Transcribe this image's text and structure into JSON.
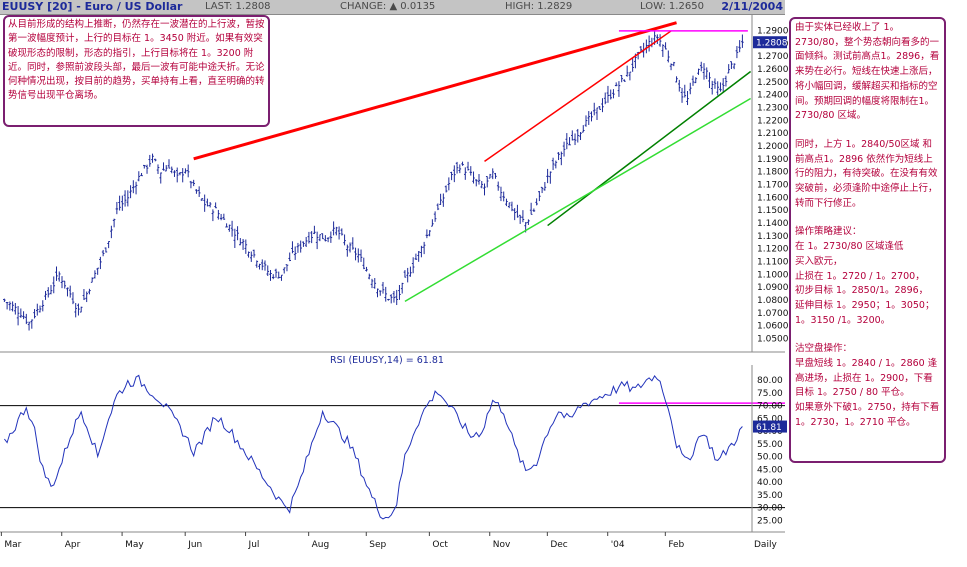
{
  "header": {
    "symbol": "EUUSY [20] - Euro / US Dollar",
    "last": "LAST: 1.2808",
    "change": "CHANGE: ▲ 0.0135",
    "high": "HIGH: 1.2829",
    "low": "LOW: 1.2650",
    "date": "2/11/2004"
  },
  "notes": {
    "left": "从目前形成的结构上推断，仍然存在一波潜在的上行波，暂按第一波幅度预计，上行的目标在 1。3450 附近。如果有效突破现形态的限制，形态的指引，上行目标将在 1。3200 附近。同时，参照前波段头部，最后一波有可能中途夭折。无论何种情况出现，按目前的趋势，买单持有上看，直至明确的转势信号出现平仓离场。",
    "right": [
      "由于实体已经收上了 1。2730/80，整个势态朝向看多的一面倾斜。测试前高点1。2896，看来势在必行。短线在快速上涨后，将小幅回调，缓解超买和指标的空间。预期回调的幅度将限制在1。2730/80 区域。",
      "",
      "同时，上方 1。2840/50区域 和 前高点1。2896 依然作为短线上行的阻力，有待突破。在没有有效突破前，必须逢阶中途停止上行，转而下行修正。",
      "",
      "操作策略建议：",
      "在 1。2730/80 区域逢低",
      "  买入欧元，",
      "止损在 1。2720 / 1。2700，",
      "初步目标 1。2850/1。2896，",
      "延伸目标 1。2950；1。3050；",
      "1。3150 /1。3200。",
      "",
      "沽空盘操作：",
      "早盘短线 1。2840 / 1。2860 逢高进场，止损在 1。2900，下看目标 1。2750 / 80  平仓。",
      "如果意外下破1。2750，持有下看 1。2730，1。2710 平仓。"
    ]
  },
  "chart_data": [
    {
      "type": "bar",
      "title": "EUUSY [20] - Euro / US Dollar",
      "x_labels": [
        "Mar",
        "Apr",
        "May",
        "Jun",
        "Jul",
        "Aug",
        "Sep",
        "Oct",
        "Nov",
        "Dec",
        "'04",
        "Feb",
        "Daily"
      ],
      "y_ticks": [
        "1.2900",
        "1.2800",
        "1.2700",
        "1.2600",
        "1.2500",
        "1.2400",
        "1.2300",
        "1.2200",
        "1.2100",
        "1.2000",
        "1.1900",
        "1.1800",
        "1.1700",
        "1.1600",
        "1.1500",
        "1.1400",
        "1.1300",
        "1.1200",
        "1.1100",
        "1.1000",
        "1.0900",
        "1.0800",
        "1.0700",
        "1.0600",
        "1.0500"
      ],
      "ylim": [
        1.045,
        1.295
      ],
      "last_value_label": "1.2808",
      "close_anchors": [
        [
          0,
          1.08
        ],
        [
          3,
          1.075
        ],
        [
          6,
          1.07
        ],
        [
          9,
          1.062
        ],
        [
          12,
          1.072
        ],
        [
          16,
          1.085
        ],
        [
          20,
          1.1
        ],
        [
          24,
          1.085
        ],
        [
          27,
          1.072
        ],
        [
          30,
          1.085
        ],
        [
          33,
          1.1
        ],
        [
          37,
          1.12
        ],
        [
          41,
          1.15
        ],
        [
          45,
          1.16
        ],
        [
          48,
          1.172
        ],
        [
          51,
          1.182
        ],
        [
          54,
          1.19
        ],
        [
          57,
          1.18
        ],
        [
          60,
          1.185
        ],
        [
          63,
          1.175
        ],
        [
          66,
          1.182
        ],
        [
          69,
          1.168
        ],
        [
          73,
          1.155
        ],
        [
          77,
          1.15
        ],
        [
          81,
          1.14
        ],
        [
          85,
          1.13
        ],
        [
          89,
          1.12
        ],
        [
          93,
          1.11
        ],
        [
          97,
          1.1
        ],
        [
          101,
          1.1
        ],
        [
          105,
          1.115
        ],
        [
          109,
          1.125
        ],
        [
          113,
          1.132
        ],
        [
          117,
          1.128
        ],
        [
          121,
          1.135
        ],
        [
          125,
          1.122
        ],
        [
          129,
          1.115
        ],
        [
          133,
          1.1
        ],
        [
          137,
          1.088
        ],
        [
          140,
          1.082
        ],
        [
          143,
          1.08
        ],
        [
          146,
          1.095
        ],
        [
          149,
          1.108
        ],
        [
          152,
          1.12
        ],
        [
          156,
          1.14
        ],
        [
          160,
          1.16
        ],
        [
          163,
          1.176
        ],
        [
          166,
          1.185
        ],
        [
          169,
          1.18
        ],
        [
          172,
          1.172
        ],
        [
          175,
          1.168
        ],
        [
          178,
          1.178
        ],
        [
          181,
          1.165
        ],
        [
          184,
          1.155
        ],
        [
          187,
          1.145
        ],
        [
          190,
          1.14
        ],
        [
          193,
          1.15
        ],
        [
          196,
          1.165
        ],
        [
          199,
          1.18
        ],
        [
          203,
          1.195
        ],
        [
          207,
          1.205
        ],
        [
          211,
          1.215
        ],
        [
          215,
          1.225
        ],
        [
          219,
          1.235
        ],
        [
          223,
          1.245
        ],
        [
          227,
          1.255
        ],
        [
          231,
          1.27
        ],
        [
          235,
          1.28
        ],
        [
          238,
          1.285
        ],
        [
          241,
          1.275
        ],
        [
          244,
          1.262
        ],
        [
          247,
          1.24
        ],
        [
          249,
          1.236
        ],
        [
          252,
          1.255
        ],
        [
          255,
          1.262
        ],
        [
          258,
          1.248
        ],
        [
          261,
          1.242
        ],
        [
          264,
          1.258
        ],
        [
          267,
          1.27
        ],
        [
          269,
          1.2808
        ]
      ],
      "trendlines": [
        {
          "name": "",
          "color": "#ff0000",
          "from": [
            69,
            1.19
          ],
          "to": [
            245,
            1.296
          ]
        },
        {
          "name": "",
          "color": "#ff0000",
          "from": [
            175,
            1.188
          ],
          "to": [
            243,
            1.2896
          ]
        },
        {
          "name": "",
          "color": "#008000",
          "from": [
            198,
            1.138
          ],
          "to": [
            272,
            1.258
          ]
        },
        {
          "name": "",
          "color": "#33dd33",
          "from": [
            146,
            1.079
          ],
          "to": [
            272,
            1.237
          ]
        },
        {
          "name": "",
          "color": "#ff00ff",
          "from": [
            224,
            1.2896
          ],
          "to": [
            271,
            1.2896
          ]
        }
      ]
    },
    {
      "type": "line",
      "title": "RSI (EUUSY,14) = 61.81",
      "ylabel_ticks": [
        "80.00",
        "75.00",
        "70.00",
        "65.00",
        "60.00",
        "55.00",
        "50.00",
        "45.00",
        "40.00",
        "35.00",
        "30.00",
        "25.00"
      ],
      "ylim": [
        22,
        84
      ],
      "reference_lines": [
        70,
        30
      ],
      "last_value_label": "61.81",
      "values": [
        [
          0,
          55
        ],
        [
          4,
          62
        ],
        [
          8,
          70
        ],
        [
          11,
          60
        ],
        [
          14,
          45
        ],
        [
          17,
          38
        ],
        [
          20,
          45
        ],
        [
          24,
          58
        ],
        [
          28,
          68
        ],
        [
          31,
          60
        ],
        [
          34,
          50
        ],
        [
          37,
          62
        ],
        [
          41,
          74
        ],
        [
          45,
          79
        ],
        [
          49,
          80
        ],
        [
          53,
          76
        ],
        [
          57,
          72
        ],
        [
          61,
          66
        ],
        [
          65,
          60
        ],
        [
          69,
          52
        ],
        [
          73,
          58
        ],
        [
          77,
          66
        ],
        [
          81,
          62
        ],
        [
          85,
          56
        ],
        [
          89,
          50
        ],
        [
          93,
          44
        ],
        [
          97,
          38
        ],
        [
          101,
          32
        ],
        [
          104,
          30
        ],
        [
          107,
          38
        ],
        [
          110,
          48
        ],
        [
          113,
          58
        ],
        [
          116,
          68
        ],
        [
          119,
          64
        ],
        [
          122,
          60
        ],
        [
          125,
          56
        ],
        [
          128,
          50
        ],
        [
          131,
          42
        ],
        [
          134,
          34
        ],
        [
          137,
          28
        ],
        [
          140,
          26
        ],
        [
          143,
          32
        ],
        [
          146,
          50
        ],
        [
          150,
          62
        ],
        [
          154,
          70
        ],
        [
          158,
          76
        ],
        [
          162,
          70
        ],
        [
          166,
          64
        ],
        [
          170,
          58
        ],
        [
          174,
          60
        ],
        [
          178,
          72
        ],
        [
          182,
          68
        ],
        [
          186,
          54
        ],
        [
          190,
          44
        ],
        [
          194,
          48
        ],
        [
          198,
          60
        ],
        [
          202,
          68
        ],
        [
          206,
          64
        ],
        [
          210,
          70
        ],
        [
          214,
          72
        ],
        [
          218,
          74
        ],
        [
          222,
          76
        ],
        [
          226,
          78
        ],
        [
          230,
          76
        ],
        [
          234,
          80
        ],
        [
          238,
          82
        ],
        [
          242,
          70
        ],
        [
          245,
          55
        ],
        [
          248,
          48
        ],
        [
          251,
          52
        ],
        [
          254,
          60
        ],
        [
          257,
          55
        ],
        [
          260,
          48
        ],
        [
          263,
          52
        ],
        [
          266,
          56
        ],
        [
          269,
          61.81
        ]
      ]
    }
  ],
  "colors": {
    "price_bars": "#1d2a9a",
    "rsi_line": "#2233bb",
    "note_border": "#7b1f70",
    "note_text": "#b4003c",
    "header_bg": "#c4c4c4",
    "marker_bg": "#1d2a9a"
  }
}
